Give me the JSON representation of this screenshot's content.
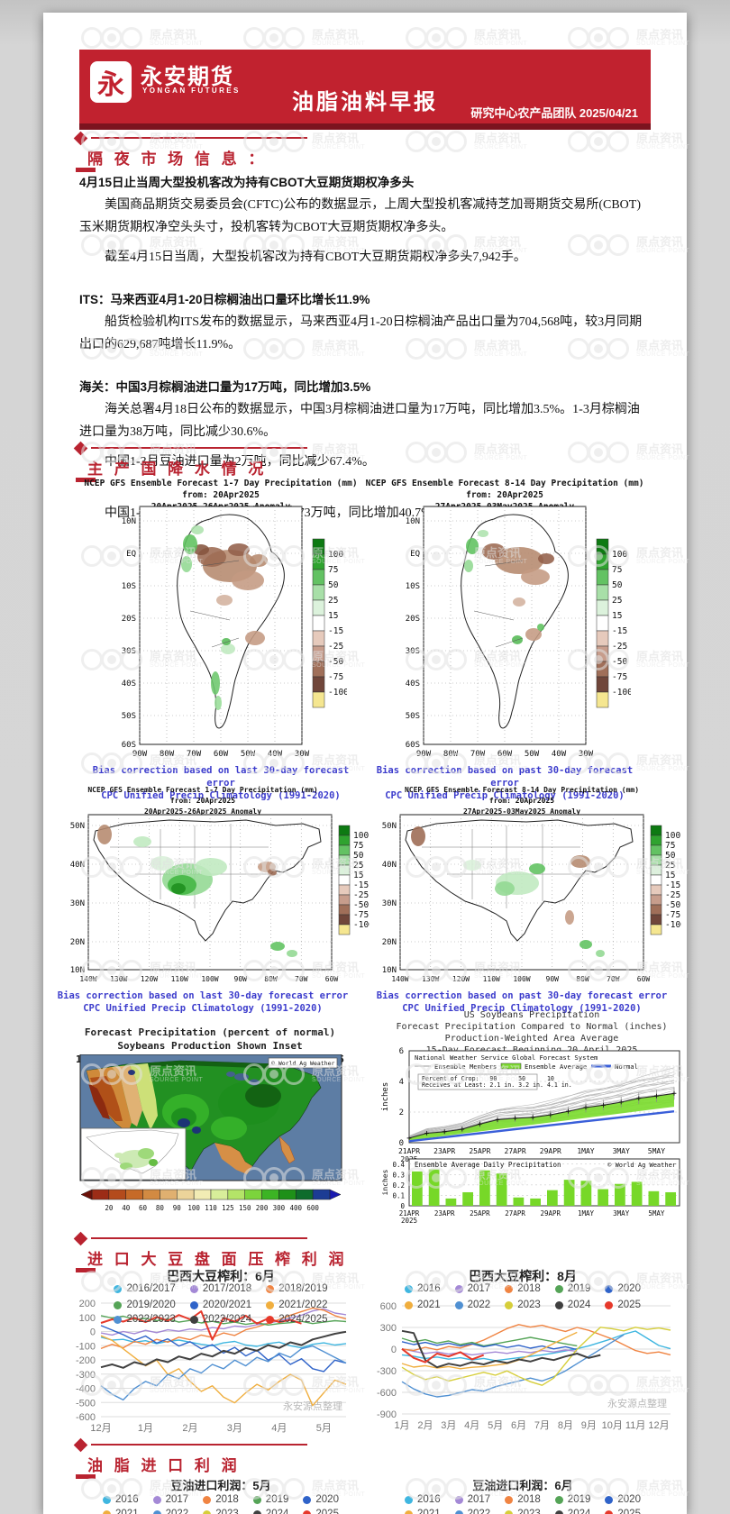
{
  "header": {
    "logo_glyph": "永",
    "logo_cn": "永安期货",
    "logo_en": "YONGAN FUTURES",
    "title": "油脂油料早报",
    "meta": "研究中心农产品团队  2025/04/21",
    "brand_red": "#c1222f"
  },
  "watermark": {
    "cn": "原点资讯",
    "en": "SOURCE POINT"
  },
  "source_note": "永安源点整理",
  "sections": {
    "market": {
      "title": "隔 夜 市 场 信 息 ：",
      "paragraphs": [
        {
          "style": "b",
          "gap": 0,
          "text": "4月15日止当周大型投机客改为持有CBOT大豆期货期权净多头"
        },
        {
          "style": "ind",
          "gap": 0,
          "text": "美国商品期货交易委员会(CFTC)公布的数据显示，上周大型投机客减持芝加哥期货交易所(CBOT)玉米期货期权净空头头寸，投机客转为CBOT大豆期货期权净多头。"
        },
        {
          "style": "ind",
          "gap": 8,
          "text": "截至4月15日当周，大型投机客改为持有CBOT大豆期货期权净多头7,942手。"
        },
        {
          "style": "b",
          "gap": 22,
          "text": "ITS：马来西亚4月1-20日棕榈油出口量环比增长11.9%"
        },
        {
          "style": "ind",
          "gap": 0,
          "text": "船货检验机构ITS发布的数据显示，马来西亚4月1-20日棕榈油产品出口量为704,568吨，较3月同期出口的629,687吨增长11.9%。"
        },
        {
          "style": "b",
          "gap": 22,
          "text": "海关：中国3月棕榈油进口量为17万吨，同比增加3.5%"
        },
        {
          "style": "ind",
          "gap": 0,
          "text": "海关总署4月18日公布的数据显示，中国3月棕榈油进口量为17万吨，同比增加3.5%。1-3月棕榈油进口量为38万吨，同比减少30.6%。"
        },
        {
          "style": "ind",
          "gap": 8,
          "text": "中国1-3月豆油进口量为2万吨，同比减少67.4%。"
        },
        {
          "style": "ind",
          "gap": 32,
          "text": "中国1-3月菜子油及芥子油进口量为73万吨，同比增加40.7%。"
        }
      ]
    },
    "precip": {
      "title": "主 产 国 降 水 情 况",
      "sa_maps": [
        {
          "title_lines": [
            "NCEP GFS Ensemble Forecast 1-7 Day Precipitation (mm)",
            "from: 20Apr2025",
            "20Apr2025-26Apr2025 Anomaly"
          ],
          "captions": [
            "Bias correction based on last 30-day forecast error",
            "CPC Unified Precip Climatology (1991-2020)"
          ]
        },
        {
          "title_lines": [
            "NCEP GFS Ensemble Forecast 8-14 Day Precipitation (mm)",
            "from: 20Apr2025",
            "27Apr2025-03May2025 Anomaly"
          ],
          "captions": [
            "Bias correction based on past 30-day forecast error",
            "CPC Unified Precip Climatology (1991-2020)"
          ]
        }
      ],
      "na_maps": [
        {
          "title_lines": [
            "NCEP GFS Ensemble Forecast 1-7 Day Precipitation (mm)",
            "from: 20Apr2025",
            "20Apr2025-26Apr2025 Anomaly"
          ],
          "captions": [
            "Bias correction based on last 30-day forecast error",
            "CPC Unified Precip Climatology (1991-2020)"
          ]
        },
        {
          "title_lines": [
            "NCEP GFS Ensemble Forecast 8-14 Day Precipitation (mm)",
            "from: 20Apr2025",
            "27Apr2025-03May2025 Anomaly"
          ],
          "captions": [
            "Bias correction based on past 30-day forecast error",
            "CPC Unified Precip Climatology (1991-2020)"
          ]
        }
      ],
      "axis": {
        "sa_y": [
          "10N",
          "EQ",
          "10S",
          "20S",
          "30S",
          "40S",
          "50S",
          "60S"
        ],
        "sa_x": [
          "90W",
          "80W",
          "70W",
          "60W",
          "50W",
          "40W",
          "30W"
        ],
        "na_y": [
          "50N",
          "40N",
          "30N",
          "20N",
          "10N"
        ],
        "na_x": [
          "140W",
          "130W",
          "120W",
          "110W",
          "100W",
          "90W",
          "80W",
          "70W",
          "60W"
        ]
      },
      "anomaly_legend": {
        "labels": [
          "100",
          "75",
          "50",
          "25",
          "15",
          "-15",
          "-25",
          "-50",
          "-75",
          "-100"
        ],
        "colors": [
          "#0d7a12",
          "#2fa32f",
          "#63c263",
          "#a8dfa8",
          "#dcf2dc",
          "#ffffff",
          "#e6cabc",
          "#c79d8c",
          "#a06f59",
          "#70463a",
          "#f5e690"
        ]
      },
      "us_map": {
        "title_lines": [
          "Forecast Precipitation (percent of normal)",
          "Soybeans Production Shown Inset",
          "15-Day Forecast (GFS) Beginning 20 April 2025"
        ],
        "credit": "© World Ag Weather",
        "colorbar_ticks": [
          "20",
          "40",
          "60",
          "80",
          "90",
          "100",
          "110",
          "125",
          "150",
          "200",
          "300",
          "400",
          "600"
        ],
        "colorbar_colors": [
          "#9c2c16",
          "#b44b1c",
          "#c66a28",
          "#d28a42",
          "#e0b070",
          "#ecd49a",
          "#f2ecb4",
          "#d8ee9a",
          "#b4e468",
          "#7cd43c",
          "#3cb424",
          "#1e9018",
          "#0e6c2c",
          "#1c3c94"
        ]
      }
    },
    "crush": {
      "title": "进 口 大 豆 盘 面 压 榨 利 润"
    },
    "oil": {
      "title": "油 脂 进 口 利 润",
      "charts": [
        {
          "title": "豆油进口利润：5月"
        },
        {
          "title": "豆油进口利润：6月"
        }
      ],
      "legend_series": [
        {
          "name": "2016",
          "color": "#3fb6e0"
        },
        {
          "name": "2017",
          "color": "#a489d6"
        },
        {
          "name": "2018",
          "color": "#f08442"
        },
        {
          "name": "2019",
          "color": "#55a457"
        },
        {
          "name": "2020",
          "color": "#2f63c9"
        },
        {
          "name": "2021",
          "color": "#f0ae3e"
        },
        {
          "name": "2022",
          "color": "#5090d2"
        },
        {
          "name": "2023",
          "color": "#d6ce3a"
        },
        {
          "name": "2024",
          "color": "#404040"
        },
        {
          "name": "2025",
          "color": "#e6392b"
        }
      ]
    }
  },
  "chart_data": [
    {
      "id": "us_soybeans_cumulative_precip",
      "type": "line",
      "title_lines": [
        "US Soybeans Precipitation",
        "Forecast Precipitation Compared to Normal (inches)",
        "Production-Weighted Area Average",
        "15-Day Forecast Beginning 20 April 2025"
      ],
      "legend": {
        "system": "National Weather Service Global Forecast System",
        "members": "Ensemble Members",
        "average": "Ensemble Average",
        "normal": "Normal"
      },
      "stats_box": [
        "Percent of Crop:   90      50      10",
        "Receives at Least: 2.1 in. 3.2 in. 4.1 in."
      ],
      "ylabel": "inches",
      "yticks": [
        0,
        2,
        4,
        6
      ],
      "ylim": [
        0,
        6
      ],
      "x_labels": [
        "21APR",
        "23APR",
        "25APR",
        "27APR",
        "29APR",
        "1MAY",
        "3MAY",
        "5MAY"
      ],
      "x_year": "2025",
      "ensemble_average": [
        0.3,
        0.62,
        0.72,
        0.88,
        1.22,
        1.5,
        1.6,
        1.66,
        1.82,
        2.05,
        2.3,
        2.45,
        2.65,
        2.9,
        3.05,
        3.22
      ],
      "normal": [
        0.1,
        0.23,
        0.36,
        0.49,
        0.62,
        0.75,
        0.88,
        1.01,
        1.14,
        1.27,
        1.4,
        1.53,
        1.66,
        1.79,
        1.92,
        2.05
      ],
      "members_count": 20,
      "colors": {
        "average_band": "#7ddc30",
        "normal_line": "#3a5fd9",
        "members": "#b8b8b8"
      }
    },
    {
      "id": "us_soybeans_daily_precip",
      "type": "bar",
      "title": "Ensemble Average Daily Precipitation",
      "credit": "© World Ag Weather",
      "ylabel": "inches",
      "yticks": [
        0,
        0.1,
        0.2,
        0.3,
        0.4
      ],
      "x_labels": [
        "21APR",
        "23APR",
        "25APR",
        "27APR",
        "29APR",
        "1MAY",
        "3MAY",
        "5MAY"
      ],
      "x_year": "2025",
      "values": [
        0.33,
        0.35,
        0.07,
        0.13,
        0.34,
        0.31,
        0.08,
        0.07,
        0.15,
        0.25,
        0.24,
        0.16,
        0.21,
        0.23,
        0.14,
        0.13
      ],
      "bar_color": "#77d828"
    },
    {
      "id": "brazil_soybean_crush_margin_jun",
      "type": "line",
      "title": "巴西大豆榨利：6月",
      "ylim": [
        -600,
        200
      ],
      "ystep": 100,
      "x_labels": [
        "12月",
        "1月",
        "2月",
        "3月",
        "4月",
        "5月"
      ],
      "series": [
        {
          "name": "2016/2017",
          "color": "#3fb6e0",
          "values": [
            -40,
            -60,
            -55,
            -75,
            -65,
            -85,
            -70,
            -60,
            -75,
            -90,
            -100,
            -80,
            -70,
            -95,
            -105,
            -85,
            -75,
            -100,
            -115,
            -90,
            -80,
            -95,
            -85
          ]
        },
        {
          "name": "2017/2018",
          "color": "#a489d6",
          "values": [
            -10,
            -25,
            0,
            -15,
            8,
            -8,
            12,
            2,
            18,
            10,
            28,
            20,
            38,
            32,
            48,
            58,
            75,
            95,
            115,
            145,
            160,
            130,
            118
          ]
        },
        {
          "name": "2018/2019",
          "color": "#f08442",
          "values": [
            -120,
            -90,
            -115,
            -70,
            -90,
            -55,
            -75,
            -40,
            -58,
            -25,
            -42,
            -10,
            -28,
            12,
            32,
            58,
            85,
            115,
            140,
            165,
            150,
            112,
            88
          ]
        },
        {
          "name": "2019/2020",
          "color": "#55a457",
          "values": [
            112,
            95,
            108,
            85,
            92,
            76,
            88,
            66,
            78,
            60,
            72,
            55,
            66,
            50,
            62,
            46,
            56,
            62,
            72,
            56,
            66,
            76,
            70
          ]
        },
        {
          "name": "2020/2021",
          "color": "#2f63c9",
          "values": [
            42,
            10,
            -22,
            -62,
            -32,
            -82,
            -52,
            -102,
            -72,
            -122,
            -92,
            -152,
            -112,
            -172,
            -132,
            -202,
            -162,
            -232,
            -192,
            -262,
            -282,
            -202,
            -222
          ]
        },
        {
          "name": "2021/2022",
          "color": "#f0ae3e",
          "values": [
            -30,
            -62,
            -122,
            -182,
            -242,
            -202,
            -302,
            -262,
            -352,
            -422,
            -382,
            -462,
            -502,
            -432,
            -372,
            -412,
            -352,
            -302,
            -342,
            -522,
            -432,
            -342,
            -372
          ]
        },
        {
          "name": "2022/2023",
          "color": "#5090d2",
          "values": [
            -382,
            -442,
            -482,
            -402,
            -352,
            -382,
            -302,
            -332,
            -262,
            -292,
            -232,
            -262,
            -202,
            -242,
            -182,
            -212,
            -152,
            -182,
            -122,
            -102,
            -142,
            -182,
            -222
          ]
        },
        {
          "name": "2023/2024",
          "color": "#404040",
          "values": [
            -252,
            -232,
            -256,
            -216,
            -236,
            -196,
            -216,
            -176,
            -196,
            -156,
            -176,
            -136,
            -156,
            -116,
            -136,
            -96,
            -116,
            -76,
            -96,
            -56,
            -36,
            -16,
            -2
          ]
        },
        {
          "name": "2024/2025",
          "color": "#e6392b",
          "values": [
            60,
            86,
            70,
            96,
            66,
            102,
            76,
            116,
            86,
            142,
            -58,
            96,
            70,
            112,
            56,
            92,
            66,
            82,
            56,
            null,
            null,
            null,
            null
          ]
        }
      ]
    },
    {
      "id": "brazil_soybean_crush_margin_aug",
      "type": "line",
      "title": "巴西大豆榨利：8月",
      "ylim": [
        -900,
        600
      ],
      "ystep": 300,
      "x_labels": [
        "1月",
        "2月",
        "3月",
        "4月",
        "5月",
        "6月",
        "7月",
        "8月",
        "9月",
        "10月",
        "11月",
        "12月"
      ],
      "series": [
        {
          "name": "2016",
          "color": "#3fb6e0",
          "values": [
            -80,
            -100,
            -130,
            -110,
            -140,
            -120,
            -150,
            -130,
            -160,
            -140,
            -120,
            -100,
            -80,
            -55,
            -25,
            5,
            45,
            95,
            145,
            205,
            250,
            150,
            50,
            5
          ]
        },
        {
          "name": "2017",
          "color": "#a489d6",
          "values": [
            5,
            -30,
            -60,
            -40,
            -70,
            -50,
            -80,
            -60,
            -40,
            -60,
            -30,
            -50,
            -20,
            -40,
            -12,
            -30,
            null,
            null,
            null,
            null,
            null,
            null,
            null,
            null
          ]
        },
        {
          "name": "2018",
          "color": "#f08442",
          "values": [
            0,
            -20,
            25,
            -10,
            35,
            15,
            65,
            125,
            205,
            285,
            340,
            305,
            330,
            285,
            245,
            300,
            260,
            200,
            140,
            60,
            -20,
            -60,
            -40,
            -80
          ]
        },
        {
          "name": "2019",
          "color": "#55a457",
          "values": [
            150,
            100,
            130,
            82,
            112,
            62,
            92,
            45,
            72,
            102,
            132,
            162,
            132,
            102,
            72,
            45,
            null,
            null,
            null,
            null,
            null,
            null,
            null,
            null
          ]
        },
        {
          "name": "2020",
          "color": "#2f63c9",
          "values": [
            102,
            62,
            92,
            52,
            82,
            42,
            72,
            32,
            62,
            22,
            52,
            12,
            42,
            2,
            32,
            -8,
            null,
            null,
            null,
            null,
            null,
            null,
            null,
            null
          ]
        },
        {
          "name": "2021",
          "color": "#f0ae3e",
          "values": [
            -200,
            -250,
            -230,
            -262,
            -242,
            -272,
            -252,
            -242,
            -222,
            -202,
            -152,
            -82,
            -2,
            78,
            158,
            232,
            null,
            null,
            null,
            null,
            null,
            null,
            null,
            null
          ]
        },
        {
          "name": "2022",
          "color": "#5090d2",
          "values": [
            -452,
            -552,
            -622,
            -662,
            -642,
            -602,
            -562,
            -582,
            -522,
            -482,
            -442,
            -402,
            -442,
            -382,
            -302,
            -202,
            -102,
            -2,
            98,
            198,
            null,
            null,
            null,
            null
          ]
        },
        {
          "name": "2023",
          "color": "#d6ce3a",
          "values": [
            -252,
            -352,
            -422,
            -382,
            -442,
            -402,
            -362,
            -322,
            -362,
            -302,
            -382,
            -452,
            -502,
            -402,
            -202,
            -2,
            152,
            302,
            282,
            252,
            302,
            272,
            292,
            262
          ]
        },
        {
          "name": "2024",
          "color": "#404040",
          "values": [
            252,
            222,
            -152,
            -252,
            -202,
            -232,
            -182,
            -212,
            -162,
            -192,
            -142,
            -172,
            -122,
            -152,
            -102,
            -62,
            -122,
            -82,
            null,
            null,
            null,
            null,
            null,
            null
          ]
        },
        {
          "name": "2025",
          "color": "#e6392b",
          "values": [
            2,
            -122,
            -182,
            -62,
            -102,
            -42,
            -142,
            -82,
            null,
            null,
            null,
            null,
            null,
            null,
            null,
            null,
            null,
            null,
            null,
            null,
            null,
            null,
            null,
            null
          ]
        }
      ]
    }
  ]
}
